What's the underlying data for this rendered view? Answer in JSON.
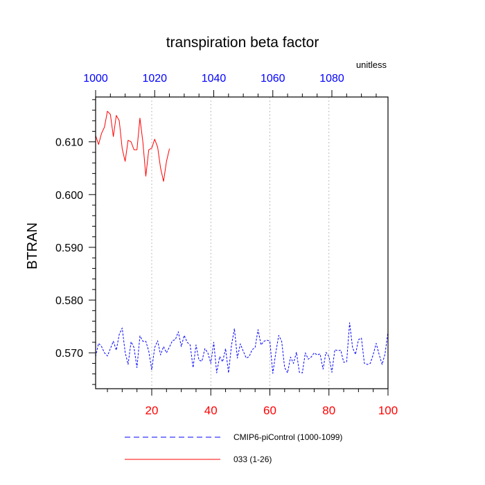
{
  "chart_data": {
    "type": "line",
    "title": "transpiration beta factor",
    "units_label": "unitless",
    "ylabel": "BTRAN",
    "xlabel": "",
    "xlim": [
      1,
      100
    ],
    "ylim": [
      0.5632,
      0.6185
    ],
    "top_xlim": [
      1000,
      1099
    ],
    "yticks": [
      0.57,
      0.58,
      0.59,
      0.6,
      0.61
    ],
    "ytick_labels": [
      "0.570",
      "0.580",
      "0.590",
      "0.600",
      "0.610"
    ],
    "xticks": [
      20,
      40,
      60,
      80,
      100
    ],
    "xtick_labels": [
      "20",
      "40",
      "60",
      "80",
      "100"
    ],
    "top_xticks": [
      1000,
      1020,
      1040,
      1060,
      1080
    ],
    "top_xtick_labels": [
      "1000",
      "1020",
      "1040",
      "1060",
      "1080"
    ],
    "grid_x": [
      20,
      40,
      60,
      80
    ],
    "grid": "vertical dotted at major bottom ticks",
    "legend_placement": "bottom",
    "colors": {
      "series_piControl": "#0000ff",
      "series_033": "#ff0000",
      "bottom_axis": "#ff0000",
      "top_axis": "#0000ff",
      "grid": "#aaaaaa"
    },
    "series": [
      {
        "name": "CMIP6-piControl (1000-1099)",
        "style": "dashed",
        "x": [
          1,
          2,
          3,
          4,
          5,
          6,
          7,
          8,
          9,
          10,
          11,
          12,
          13,
          14,
          15,
          16,
          17,
          18,
          19,
          20,
          21,
          22,
          23,
          24,
          25,
          26,
          27,
          28,
          29,
          30,
          31,
          32,
          33,
          34,
          35,
          36,
          37,
          38,
          39,
          40,
          41,
          42,
          43,
          44,
          45,
          46,
          47,
          48,
          49,
          50,
          51,
          52,
          53,
          54,
          55,
          56,
          57,
          58,
          59,
          60,
          61,
          62,
          63,
          64,
          65,
          66,
          67,
          68,
          69,
          70,
          71,
          72,
          73,
          74,
          75,
          76,
          77,
          78,
          79,
          80,
          81,
          82,
          83,
          84,
          85,
          86,
          87,
          88,
          89,
          90,
          91,
          92,
          93,
          94,
          95,
          96,
          97,
          98,
          99,
          100
        ],
        "values": [
          0.5693,
          0.5718,
          0.5712,
          0.57,
          0.5694,
          0.5708,
          0.5722,
          0.5705,
          0.5735,
          0.5747,
          0.5701,
          0.5678,
          0.5721,
          0.571,
          0.5672,
          0.5732,
          0.5722,
          0.5722,
          0.5703,
          0.5668,
          0.571,
          0.5723,
          0.5696,
          0.5712,
          0.57,
          0.5711,
          0.5723,
          0.5725,
          0.574,
          0.5712,
          0.5733,
          0.572,
          0.5715,
          0.5672,
          0.5715,
          0.5686,
          0.5684,
          0.5708,
          0.57,
          0.568,
          0.572,
          0.5662,
          0.5693,
          0.5683,
          0.5708,
          0.5662,
          0.5714,
          0.5746,
          0.569,
          0.5717,
          0.5703,
          0.569,
          0.5693,
          0.5706,
          0.571,
          0.5744,
          0.5715,
          0.5722,
          0.5724,
          0.5722,
          0.5661,
          0.57,
          0.5733,
          0.5722,
          0.5672,
          0.5662,
          0.5692,
          0.568,
          0.5701,
          0.5663,
          0.5662,
          0.57,
          0.5688,
          0.5692,
          0.57,
          0.5696,
          0.5698,
          0.5669,
          0.5701,
          0.5693,
          0.5663,
          0.5706,
          0.5704,
          0.5705,
          0.5682,
          0.5683,
          0.5757,
          0.571,
          0.5697,
          0.5725,
          0.5728,
          0.568,
          0.5678,
          0.568,
          0.5697,
          0.5718,
          0.5697,
          0.5678,
          0.5698,
          0.574
        ]
      },
      {
        "name": "033 (1-26)",
        "style": "solid",
        "x": [
          1,
          2,
          3,
          4,
          5,
          6,
          7,
          8,
          9,
          10,
          11,
          12,
          13,
          14,
          15,
          16,
          17,
          18,
          19,
          20,
          21,
          22,
          23,
          24,
          25,
          26
        ],
        "values": [
          0.6112,
          0.6095,
          0.6116,
          0.6128,
          0.6158,
          0.6152,
          0.611,
          0.615,
          0.614,
          0.6087,
          0.6063,
          0.6103,
          0.61,
          0.6085,
          0.6085,
          0.6145,
          0.61,
          0.6035,
          0.6085,
          0.6088,
          0.6105,
          0.609,
          0.605,
          0.6025,
          0.6063,
          0.6087
        ]
      }
    ]
  }
}
